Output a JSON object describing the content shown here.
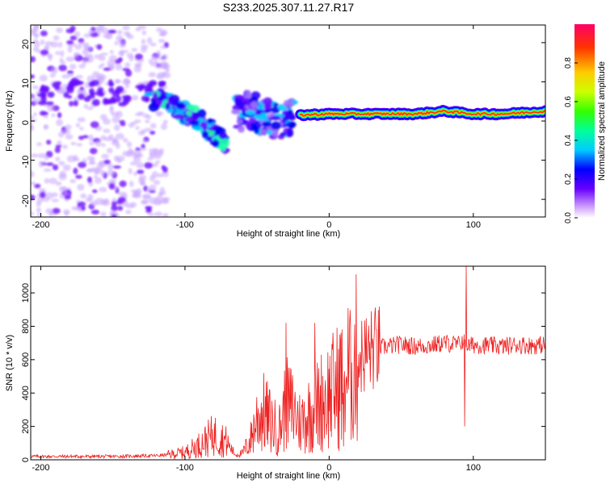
{
  "title": "S233.2025.307.11.27.R17",
  "chart_data": [
    {
      "type": "heatmap",
      "xlabel": "Height of straight line (km)",
      "ylabel": "Frequency (Hz)",
      "xlim": [
        -207,
        150
      ],
      "ylim": [
        -24.5,
        24.5
      ],
      "xticks": [
        -200,
        -100,
        0,
        100
      ],
      "yticks": [
        -20,
        -10,
        0,
        10,
        20
      ],
      "colorbar": {
        "label": "Normalized spectral amplitude",
        "range": [
          0,
          1
        ],
        "ticks": [
          "0.0",
          "0.2",
          "0.4",
          "0.6",
          "0.8"
        ],
        "tick_values": [
          0,
          0.2,
          0.4,
          0.6,
          0.8
        ],
        "colormap": [
          "#ffffff",
          "#cc99ff",
          "#6600ff",
          "#0000ff",
          "#00ccff",
          "#00ff66",
          "#ccff00",
          "#ffcc00",
          "#ff3300",
          "#ff0066"
        ]
      },
      "features": [
        {
          "name": "scattered noise",
          "x_range": [
            -207,
            -112
          ],
          "y_range": [
            -24.5,
            24.5
          ]
        },
        {
          "name": "descending signal",
          "x": [
            -125,
            -110,
            -100,
            -90,
            -80,
            -72
          ],
          "y": [
            6,
            4,
            2,
            0,
            -3,
            -6
          ]
        },
        {
          "name": "mid signal",
          "x": [
            -65,
            -55,
            -45,
            -35,
            -25
          ],
          "y": [
            2,
            3,
            1,
            0,
            1
          ]
        },
        {
          "name": "stable carrier",
          "x": [
            -20,
            0,
            20,
            40,
            60,
            80,
            100,
            120,
            150
          ],
          "y": [
            1.5,
            1.8,
            1.8,
            1.8,
            1.8,
            2.5,
            1.8,
            1.8,
            2.5
          ]
        }
      ]
    },
    {
      "type": "line",
      "xlabel": "Height of straight line (km)",
      "ylabel": "SNR (10 * v/v)",
      "xlim": [
        -207,
        150
      ],
      "ylim": [
        0,
        1160
      ],
      "xticks": [
        -200,
        -100,
        0,
        100
      ],
      "yticks": [
        0,
        200,
        400,
        600,
        800,
        1000
      ],
      "color": "#ee2222",
      "series": [
        {
          "name": "SNR",
          "x": [
            -207,
            -180,
            -150,
            -120,
            -112,
            -100,
            -90,
            -80,
            -72,
            -65,
            -60,
            -55,
            -50,
            -45,
            -40,
            -35,
            -30,
            -25,
            -20,
            -15,
            -10,
            -5,
            0,
            5,
            10,
            15,
            20,
            25,
            30,
            35,
            40,
            50,
            60,
            70,
            80,
            90,
            93,
            95,
            97,
            100,
            110,
            120,
            130,
            140,
            150
          ],
          "y": [
            20,
            20,
            20,
            25,
            30,
            45,
            90,
            150,
            115,
            30,
            40,
            110,
            250,
            280,
            220,
            170,
            330,
            300,
            220,
            270,
            300,
            360,
            390,
            430,
            490,
            550,
            610,
            640,
            660,
            670,
            680,
            690,
            680,
            685,
            700,
            690,
            720,
            700,
            680,
            690,
            685,
            680,
            690,
            685,
            690
          ],
          "spikes": [
            {
              "x": 95,
              "y": 1160
            },
            {
              "x": 94,
              "y": 200
            },
            {
              "x": -10,
              "y": 820
            },
            {
              "x": -30,
              "y": 820
            },
            {
              "x": 10,
              "y": 80
            },
            {
              "x": 15,
              "y": 800
            }
          ]
        }
      ]
    }
  ]
}
